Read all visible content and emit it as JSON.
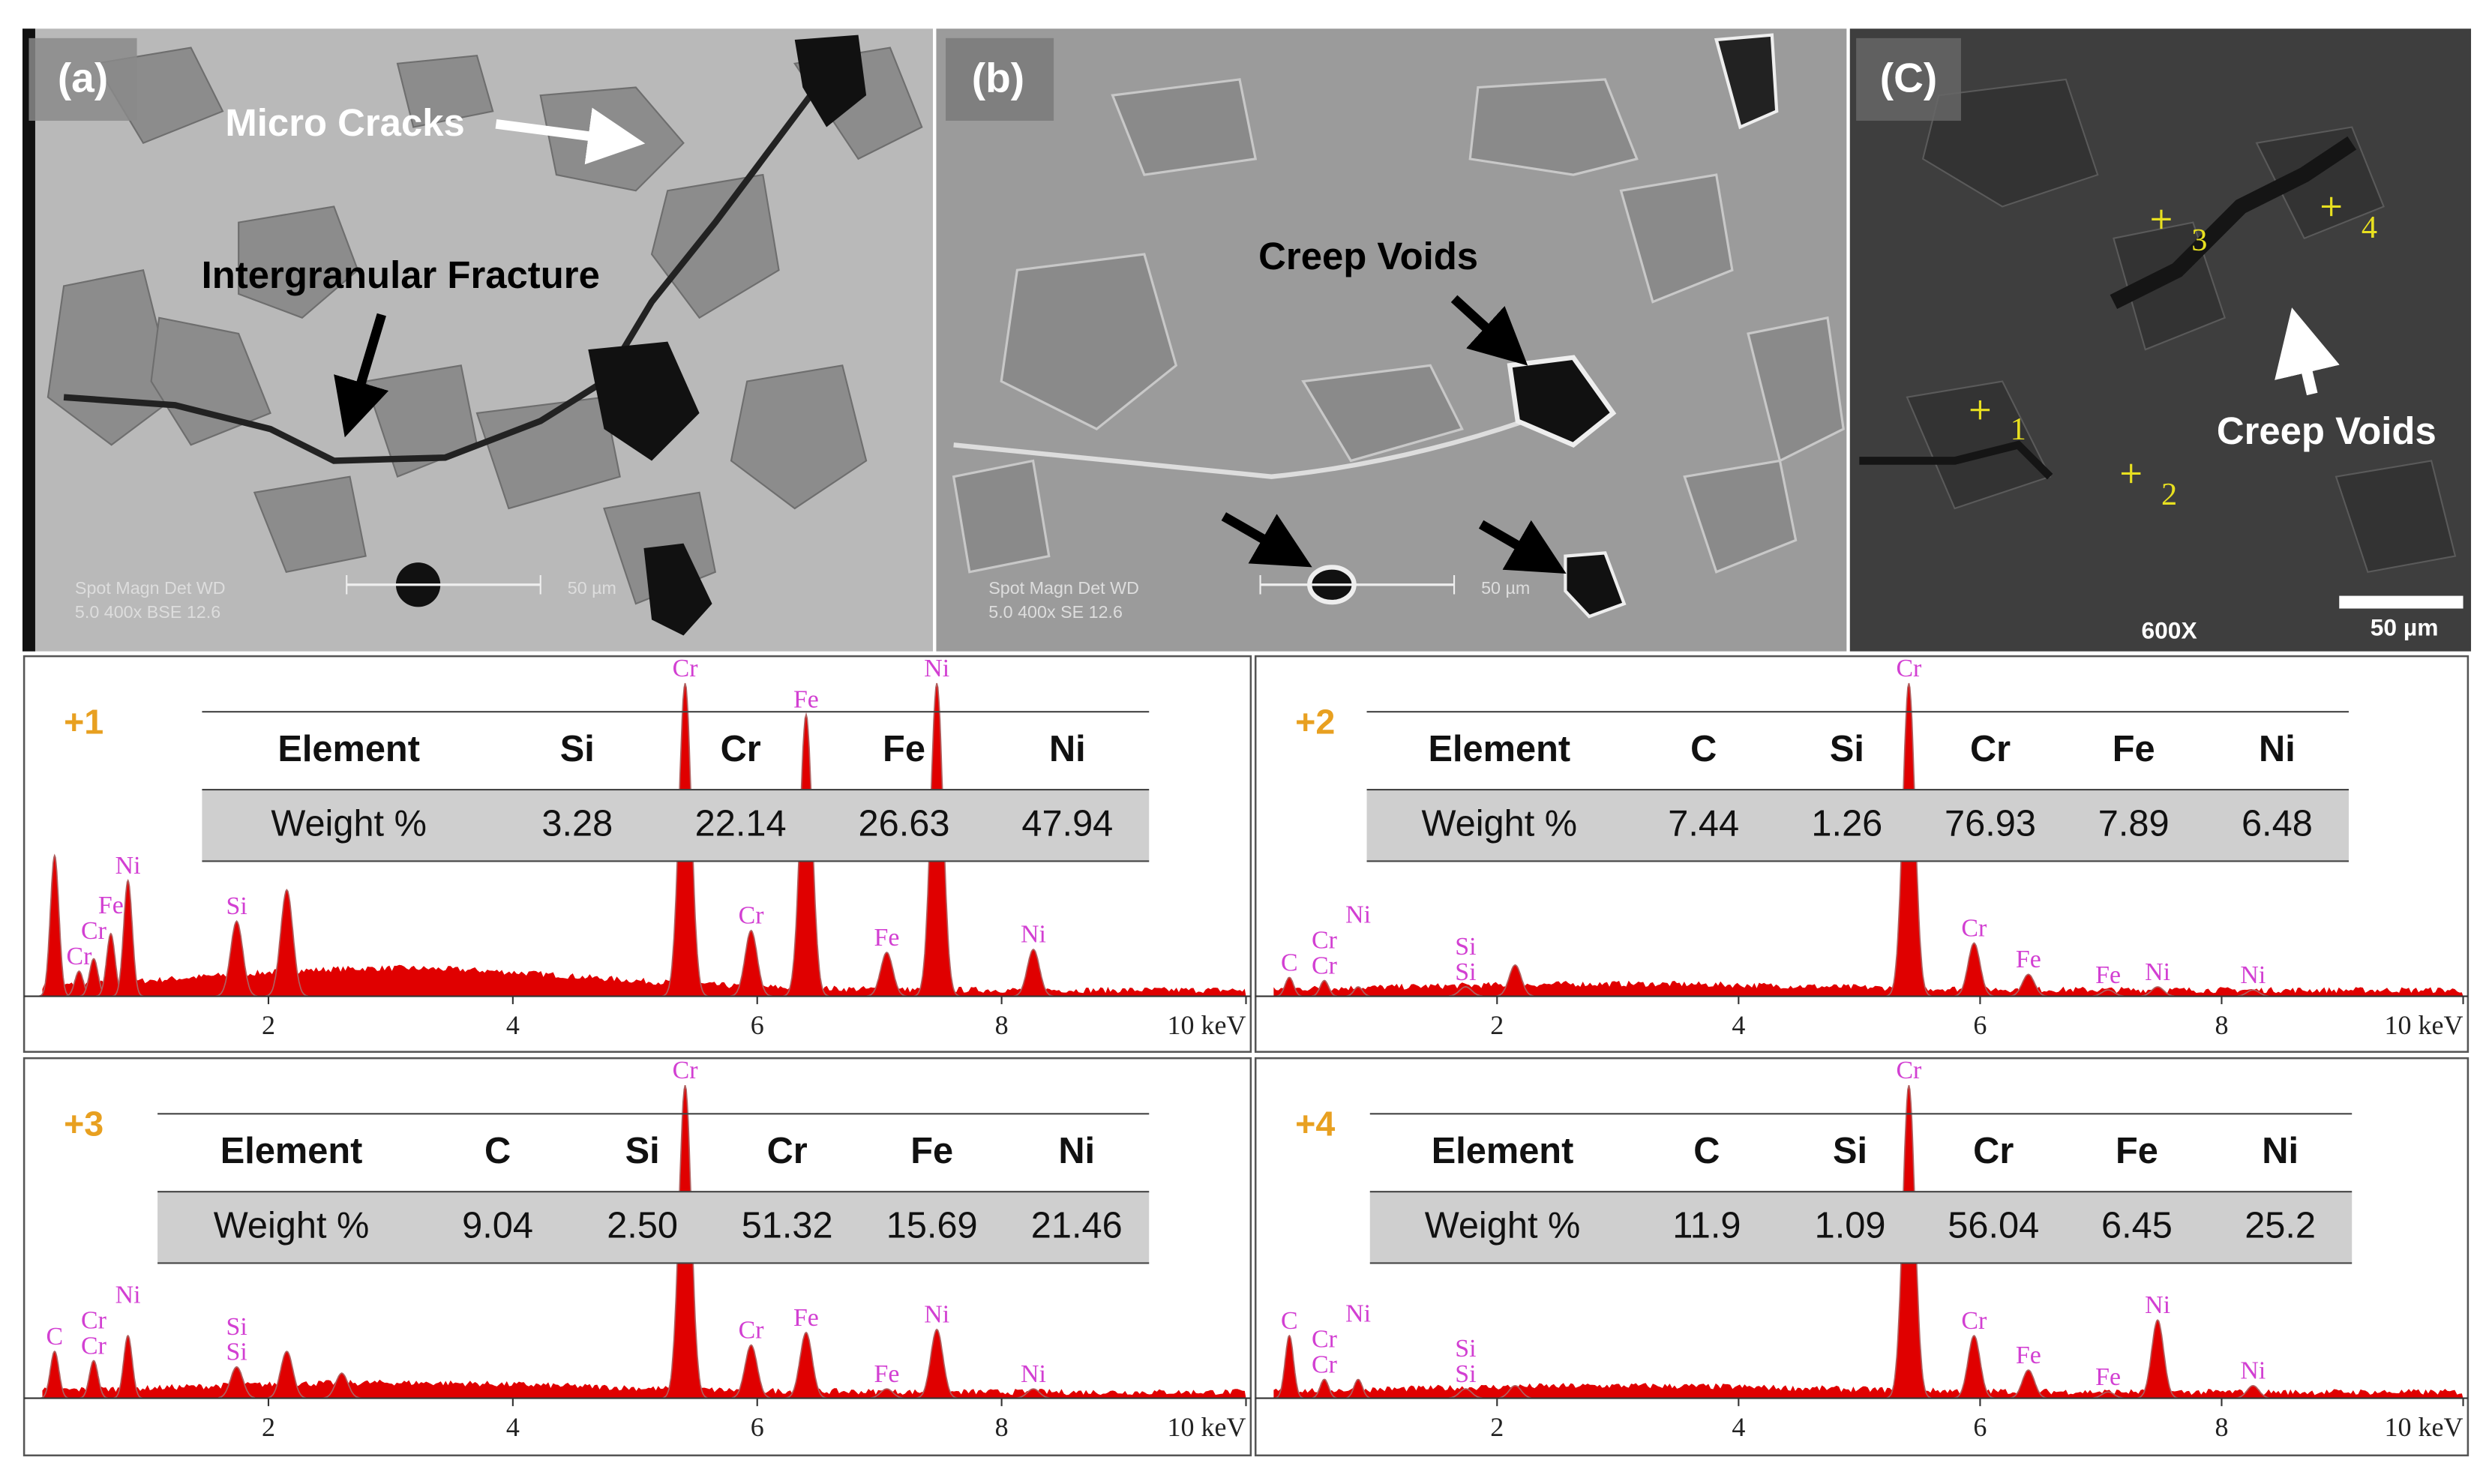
{
  "images": [
    {
      "label": "(a)",
      "annotations": [
        "Micro Cracks",
        "Intergranular Fracture"
      ],
      "info": [
        "Spot Magn   Det  WD",
        "5.0    400x   BSE 12.6"
      ],
      "scale_bar": "50 µm"
    },
    {
      "label": "(b)",
      "annotations": [
        "Creep Voids"
      ],
      "info": [
        "Spot Magn   Det  WD",
        "5.0    400x   SE   12.6"
      ],
      "scale_bar": "50 µm"
    },
    {
      "label": "(C)",
      "annotations": [
        "Creep Voids"
      ],
      "points": [
        "1",
        "2",
        "3",
        "4"
      ],
      "magnification": "600X",
      "scale_bar": "50 µm"
    }
  ],
  "spectra": [
    {
      "point": "+1",
      "xlim": [
        0,
        10
      ],
      "ylim": [
        0,
        100
      ],
      "xticks": [
        2,
        4,
        6,
        8,
        {
          "value": 10,
          "label": "10 keV"
        }
      ],
      "table": {
        "header": [
          "Element",
          "Si",
          "Cr",
          "Fe",
          "Ni"
        ],
        "row": [
          "Weight %",
          "3.28",
          "22.14",
          "26.63",
          "47.94"
        ]
      },
      "peaks": [
        {
          "label": null,
          "x": 0.25,
          "y": 45
        },
        {
          "label": "Cr",
          "x": 0.45,
          "y": 8
        },
        {
          "label": "Cr",
          "x": 0.57,
          "y": 12
        },
        {
          "label": "Fe",
          "x": 0.71,
          "y": 20
        },
        {
          "label": "Ni",
          "x": 0.85,
          "y": 37
        },
        {
          "label": "Si",
          "x": 1.74,
          "y": 24
        },
        {
          "label": null,
          "x": 2.15,
          "y": 34
        },
        {
          "label": "Cr",
          "x": 5.41,
          "y": 100
        },
        {
          "label": "Cr",
          "x": 5.95,
          "y": 21
        },
        {
          "label": "Fe",
          "x": 6.4,
          "y": 90
        },
        {
          "label": "Fe",
          "x": 7.06,
          "y": 14
        },
        {
          "label": "Ni",
          "x": 7.47,
          "y": 100
        },
        {
          "label": "Ni",
          "x": 8.26,
          "y": 15
        }
      ]
    },
    {
      "point": "+2",
      "xlim": [
        0,
        10
      ],
      "ylim": [
        0,
        100
      ],
      "xticks": [
        2,
        4,
        6,
        8,
        {
          "value": 10,
          "label": "10 keV"
        }
      ],
      "table": {
        "header": [
          "Element",
          "C",
          "Si",
          "Cr",
          "Fe",
          "Ni"
        ],
        "row": [
          "Weight %",
          "7.44",
          "1.26",
          "76.93",
          "7.89",
          "6.48"
        ]
      },
      "peaks": [
        {
          "label": "C",
          "x": 0.28,
          "y": 6
        },
        {
          "label": "Cr",
          "x": 0.57,
          "y": 5
        },
        {
          "label": "Cr",
          "x": 0.57,
          "y": 5
        },
        {
          "label": "Ni",
          "x": 0.85,
          "y": 3
        },
        {
          "label": "Si",
          "x": 1.74,
          "y": 3
        },
        {
          "label": "Si",
          "x": 1.74,
          "y": 3
        },
        {
          "label": null,
          "x": 2.15,
          "y": 10
        },
        {
          "label": "Cr",
          "x": 5.41,
          "y": 100
        },
        {
          "label": "Cr",
          "x": 5.95,
          "y": 17
        },
        {
          "label": "Fe",
          "x": 6.4,
          "y": 7
        },
        {
          "label": "Fe",
          "x": 7.06,
          "y": 2
        },
        {
          "label": "Ni",
          "x": 7.47,
          "y": 3
        },
        {
          "label": "Ni",
          "x": 8.26,
          "y": 2
        }
      ]
    },
    {
      "point": "+3",
      "xlim": [
        0,
        10
      ],
      "ylim": [
        0,
        100
      ],
      "xticks": [
        2,
        4,
        6,
        8,
        {
          "value": 10,
          "label": "10 keV"
        }
      ],
      "table": {
        "header": [
          "Element",
          "C",
          "Si",
          "Cr",
          "Fe",
          "Ni"
        ],
        "row": [
          "Weight %",
          "9.04",
          "2.50",
          "51.32",
          "15.69",
          "21.46"
        ]
      },
      "peaks": [
        {
          "label": "C",
          "x": 0.25,
          "y": 15
        },
        {
          "label": "Cr",
          "x": 0.57,
          "y": 12
        },
        {
          "label": "Cr",
          "x": 0.57,
          "y": 12
        },
        {
          "label": "Ni",
          "x": 0.85,
          "y": 20
        },
        {
          "label": "Si",
          "x": 1.74,
          "y": 10
        },
        {
          "label": "Si",
          "x": 1.74,
          "y": 10
        },
        {
          "label": null,
          "x": 2.15,
          "y": 15
        },
        {
          "label": null,
          "x": 2.6,
          "y": 8
        },
        {
          "label": "Cr",
          "x": 5.41,
          "y": 100
        },
        {
          "label": "Cr",
          "x": 5.95,
          "y": 17
        },
        {
          "label": "Fe",
          "x": 6.4,
          "y": 21
        },
        {
          "label": "Fe",
          "x": 7.06,
          "y": 3
        },
        {
          "label": "Ni",
          "x": 7.47,
          "y": 22
        },
        {
          "label": "Ni",
          "x": 8.26,
          "y": 3
        }
      ]
    },
    {
      "point": "+4",
      "xlim": [
        0,
        10
      ],
      "ylim": [
        0,
        100
      ],
      "xticks": [
        2,
        4,
        6,
        8,
        {
          "value": 10,
          "label": "10 keV"
        }
      ],
      "table": {
        "header": [
          "Element",
          "C",
          "Si",
          "Cr",
          "Fe",
          "Ni"
        ],
        "row": [
          "Weight %",
          "11.9",
          "1.09",
          "56.04",
          "6.45",
          "25.2"
        ]
      },
      "peaks": [
        {
          "label": "C",
          "x": 0.28,
          "y": 20
        },
        {
          "label": "Cr",
          "x": 0.57,
          "y": 6
        },
        {
          "label": "Cr",
          "x": 0.57,
          "y": 6
        },
        {
          "label": "Ni",
          "x": 0.85,
          "y": 6
        },
        {
          "label": "Si",
          "x": 1.74,
          "y": 3
        },
        {
          "label": "Si",
          "x": 1.74,
          "y": 3
        },
        {
          "label": null,
          "x": 2.15,
          "y": 4
        },
        {
          "label": "Cr",
          "x": 5.41,
          "y": 100
        },
        {
          "label": "Cr",
          "x": 5.95,
          "y": 20
        },
        {
          "label": "Fe",
          "x": 6.4,
          "y": 9
        },
        {
          "label": "Fe",
          "x": 7.06,
          "y": 2
        },
        {
          "label": "Ni",
          "x": 7.47,
          "y": 25
        },
        {
          "label": "Ni",
          "x": 8.26,
          "y": 4
        }
      ]
    }
  ]
}
